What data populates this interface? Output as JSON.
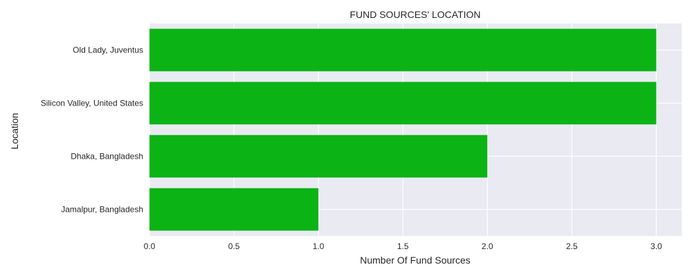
{
  "chart_data": {
    "type": "bar",
    "orientation": "horizontal",
    "title": "FUND SOURCES' LOCATION",
    "xlabel": "Number Of Fund Sources",
    "ylabel": "Location",
    "categories": [
      "Jamalpur, Bangladesh",
      "Dhaka, Bangladesh",
      "Silicon Valley, United States",
      "Old Lady, Juventus"
    ],
    "values": [
      1,
      2,
      3,
      3
    ],
    "xlim": [
      0,
      3.15
    ],
    "xticks": [
      "0.0",
      "0.5",
      "1.0",
      "1.5",
      "2.0",
      "2.5",
      "3.0"
    ],
    "grid": true,
    "colors": {
      "bar": "#0bb315",
      "background": "#eaeaf2",
      "grid": "#ffffff"
    }
  }
}
